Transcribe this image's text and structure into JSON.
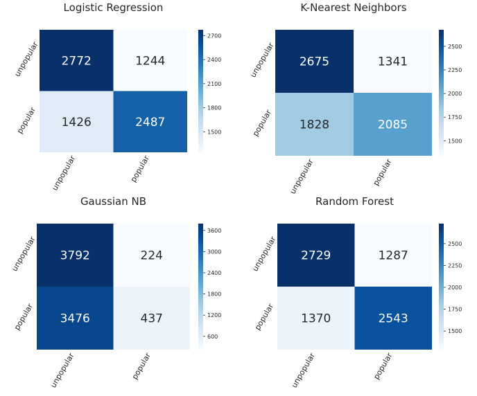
{
  "chart_data": [
    {
      "type": "heatmap",
      "title": "Logistic Regression",
      "row_labels": [
        "unpopular",
        "popular"
      ],
      "col_labels": [
        "unpopular",
        "popular"
      ],
      "values": [
        [
          2772,
          1244
        ],
        [
          1426,
          2487
        ]
      ],
      "colorbar": {
        "min": 1244,
        "max": 2772,
        "ticks": [
          1500,
          1800,
          2100,
          2400,
          2700
        ]
      },
      "colormap": "Blues"
    },
    {
      "type": "heatmap",
      "title": "K-Nearest Neighbors",
      "row_labels": [
        "unpopular",
        "popular"
      ],
      "col_labels": [
        "unpopular",
        "popular"
      ],
      "values": [
        [
          2675,
          1341
        ],
        [
          1828,
          2085
        ]
      ],
      "colorbar": {
        "min": 1341,
        "max": 2675,
        "ticks": [
          1500,
          1750,
          2000,
          2250,
          2500
        ]
      },
      "colormap": "Blues"
    },
    {
      "type": "heatmap",
      "title": "Gaussian NB",
      "row_labels": [
        "unpopular",
        "popular"
      ],
      "col_labels": [
        "unpopular",
        "popular"
      ],
      "values": [
        [
          3792,
          224
        ],
        [
          3476,
          437
        ]
      ],
      "colorbar": {
        "min": 224,
        "max": 3792,
        "ticks": [
          600,
          1200,
          1800,
          2400,
          3000,
          3600
        ]
      },
      "colormap": "Blues"
    },
    {
      "type": "heatmap",
      "title": "Random Forest",
      "row_labels": [
        "unpopular",
        "popular"
      ],
      "col_labels": [
        "unpopular",
        "popular"
      ],
      "values": [
        [
          2729,
          1287
        ],
        [
          1370,
          2543
        ]
      ],
      "colorbar": {
        "min": 1287,
        "max": 2729,
        "ticks": [
          1500,
          1750,
          2000,
          2250,
          2500
        ]
      },
      "colormap": "Blues"
    }
  ],
  "colors": {
    "cmap_low": "#f7fbff",
    "cmap_mid1": "#c6dbef",
    "cmap_mid2": "#6baed6",
    "cmap_mid3": "#2171b5",
    "cmap_high": "#08306b",
    "text_light": "#ffffff",
    "text_dark": "#262626",
    "label_text": "#262626"
  }
}
